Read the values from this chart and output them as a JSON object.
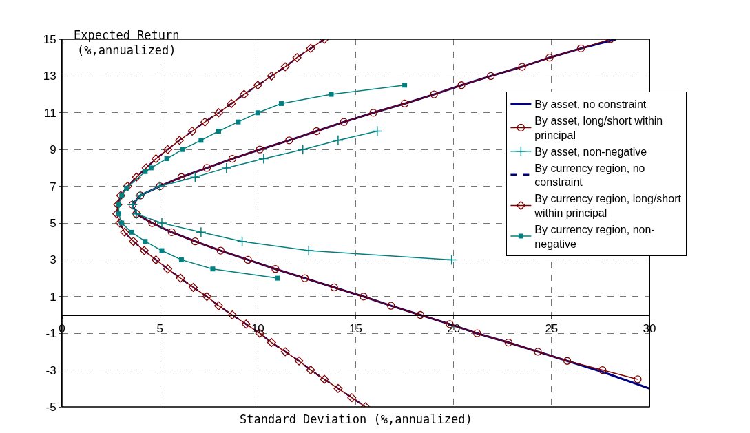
{
  "chart_data": {
    "type": "line",
    "xlabel": "Standard Deviation (%,annualized)",
    "ylabel": "Expected Return (%,annualized)",
    "xlim": [
      0,
      30
    ],
    "xticks": [
      0,
      5,
      10,
      15,
      20,
      25,
      30
    ],
    "ylim": [
      -5,
      15
    ],
    "yticks": [
      -5,
      -3,
      -1,
      1,
      3,
      5,
      7,
      9,
      11,
      13,
      15
    ],
    "grid": true,
    "legend": "right",
    "series": [
      {
        "name": "By asset, no constraint",
        "color": "#000080",
        "line_style": "solid",
        "marker": "none",
        "x": [
          28.3,
          26.5,
          24.9,
          23.5,
          21.9,
          20.4,
          19.0,
          17.5,
          15.9,
          14.4,
          13.0,
          11.6,
          10.1,
          8.7,
          7.4,
          6.1,
          5.0,
          4.0,
          3.6,
          3.8,
          4.6,
          5.6,
          6.8,
          8.1,
          9.5,
          10.9,
          12.4,
          13.9,
          15.4,
          16.8,
          18.3,
          19.8,
          21.2,
          22.8,
          24.3,
          25.8,
          27.6,
          30.0
        ],
        "values": [
          15.0,
          14.5,
          14.0,
          13.5,
          13.0,
          12.5,
          12.0,
          11.5,
          11.0,
          10.5,
          10.0,
          9.5,
          9.0,
          8.5,
          8.0,
          7.5,
          7.0,
          6.5,
          6.0,
          5.5,
          5.0,
          4.5,
          4.0,
          3.5,
          3.0,
          2.5,
          2.0,
          1.5,
          1.0,
          0.5,
          0.0,
          -0.5,
          -1.0,
          -1.5,
          -2.0,
          -2.5,
          -3.1,
          -4.0
        ]
      },
      {
        "name": "By asset, long/short within principal",
        "color": "#800000",
        "line_style": "solid",
        "marker": "circle",
        "x": [
          28.0,
          26.5,
          24.9,
          23.5,
          21.9,
          20.4,
          19.0,
          17.5,
          15.9,
          14.4,
          13.0,
          11.6,
          10.1,
          8.7,
          7.4,
          6.1,
          5.0,
          4.0,
          3.6,
          3.8,
          4.6,
          5.6,
          6.8,
          8.1,
          9.5,
          10.9,
          12.4,
          13.9,
          15.4,
          16.8,
          18.3,
          19.8,
          21.2,
          22.8,
          24.3,
          25.8,
          27.6,
          29.4
        ],
        "values": [
          15.0,
          14.5,
          14.0,
          13.5,
          13.0,
          12.5,
          12.0,
          11.5,
          11.0,
          10.5,
          10.0,
          9.5,
          9.0,
          8.5,
          8.0,
          7.5,
          7.0,
          6.5,
          6.0,
          5.5,
          5.0,
          4.5,
          4.0,
          3.5,
          3.0,
          2.5,
          2.0,
          1.5,
          1.0,
          0.5,
          0.0,
          -0.5,
          -1.0,
          -1.5,
          -2.0,
          -2.5,
          -3.0,
          -3.5
        ]
      },
      {
        "name": "By asset, non-negative",
        "color": "#008080",
        "line_style": "solid",
        "marker": "cross",
        "x": [
          16.1,
          14.1,
          12.3,
          10.3,
          8.4,
          6.8,
          5.0,
          4.0,
          3.6,
          3.8,
          5.1,
          7.1,
          9.2,
          12.6,
          19.9
        ],
        "values": [
          10.0,
          9.5,
          9.0,
          8.5,
          8.0,
          7.5,
          7.0,
          6.5,
          6.0,
          5.5,
          5.0,
          4.5,
          4.0,
          3.5,
          3.0
        ]
      },
      {
        "name": "By currency region, no constraint",
        "color": "#000080",
        "line_style": "dashed",
        "marker": "none",
        "x": [
          13.4,
          12.7,
          12.0,
          11.4,
          10.7,
          10.0,
          9.3,
          8.65,
          8.0,
          7.3,
          6.65,
          6.0,
          5.4,
          4.8,
          4.3,
          3.8,
          3.35,
          3.0,
          2.85,
          2.8,
          2.95,
          3.2,
          3.65,
          4.2,
          4.8,
          5.4,
          6.05,
          6.7,
          7.4,
          8.0,
          8.7,
          9.4,
          10.1,
          10.7,
          11.4,
          12.1,
          12.7,
          13.4,
          14.1,
          14.8,
          15.5
        ],
        "values": [
          15.0,
          14.5,
          14.0,
          13.5,
          13.0,
          12.5,
          12.0,
          11.5,
          11.0,
          10.5,
          10.0,
          9.5,
          9.0,
          8.5,
          8.0,
          7.5,
          7.0,
          6.5,
          6.0,
          5.5,
          5.0,
          4.5,
          4.0,
          3.5,
          3.0,
          2.5,
          2.0,
          1.5,
          1.0,
          0.5,
          0.0,
          -0.5,
          -1.0,
          -1.5,
          -2.0,
          -2.5,
          -3.0,
          -3.5,
          -4.0,
          -4.5,
          -5.0
        ]
      },
      {
        "name": "By currency region, long/short within principal",
        "color": "#800000",
        "line_style": "solid",
        "marker": "diamond",
        "x": [
          13.4,
          12.7,
          12.0,
          11.4,
          10.7,
          10.0,
          9.3,
          8.65,
          8.0,
          7.3,
          6.65,
          6.0,
          5.4,
          4.8,
          4.3,
          3.8,
          3.35,
          3.0,
          2.85,
          2.8,
          2.95,
          3.2,
          3.65,
          4.2,
          4.8,
          5.4,
          6.05,
          6.7,
          7.4,
          8.0,
          8.7,
          9.4,
          10.1,
          10.7,
          11.4,
          12.1,
          12.7,
          13.4,
          14.1,
          14.8,
          15.5
        ],
        "values": [
          15.0,
          14.5,
          14.0,
          13.5,
          13.0,
          12.5,
          12.0,
          11.5,
          11.0,
          10.5,
          10.0,
          9.5,
          9.0,
          8.5,
          8.0,
          7.5,
          7.0,
          6.5,
          6.0,
          5.5,
          5.0,
          4.5,
          4.0,
          3.5,
          3.0,
          2.5,
          2.0,
          1.5,
          1.0,
          0.5,
          0.0,
          -0.5,
          -1.0,
          -1.5,
          -2.0,
          -2.5,
          -3.0,
          -3.5,
          -4.0,
          -4.5,
          -5.0
        ]
      },
      {
        "name": "By currency region, non-negative",
        "color": "#008080",
        "line_style": "solid",
        "marker": "square",
        "x": [
          17.5,
          13.75,
          11.2,
          10.0,
          9.0,
          8.0,
          7.1,
          6.15,
          5.35,
          4.55,
          4.25,
          3.3,
          3.05,
          2.9,
          2.9,
          3.05,
          3.55,
          4.25,
          5.1,
          6.1,
          7.7,
          11.0
        ],
        "values": [
          12.5,
          12.0,
          11.5,
          11.0,
          10.5,
          10.0,
          9.5,
          9.0,
          8.5,
          8.0,
          7.8,
          6.9,
          6.5,
          6.0,
          5.5,
          5.0,
          4.5,
          4.0,
          3.5,
          3.0,
          2.5,
          2.0
        ]
      }
    ]
  }
}
